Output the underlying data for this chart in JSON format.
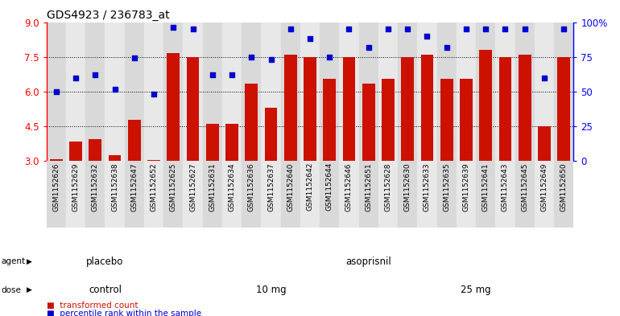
{
  "title": "GDS4923 / 236783_at",
  "samples": [
    "GSM1152626",
    "GSM1152629",
    "GSM1152632",
    "GSM1152638",
    "GSM1152647",
    "GSM1152652",
    "GSM1152625",
    "GSM1152627",
    "GSM1152631",
    "GSM1152634",
    "GSM1152636",
    "GSM1152637",
    "GSM1152640",
    "GSM1152642",
    "GSM1152644",
    "GSM1152646",
    "GSM1152651",
    "GSM1152628",
    "GSM1152630",
    "GSM1152633",
    "GSM1152635",
    "GSM1152639",
    "GSM1152641",
    "GSM1152643",
    "GSM1152645",
    "GSM1152649",
    "GSM1152650"
  ],
  "bar_values": [
    3.1,
    3.85,
    3.95,
    3.25,
    4.8,
    3.05,
    7.65,
    7.5,
    4.6,
    4.6,
    6.35,
    5.3,
    7.6,
    7.5,
    6.55,
    7.5,
    6.35,
    6.55,
    7.5,
    7.6,
    6.55,
    6.55,
    7.8,
    7.5,
    7.6,
    4.5,
    7.5
  ],
  "blue_values_pct": [
    50,
    60,
    62,
    52,
    74,
    48,
    96,
    95,
    62,
    62,
    75,
    73,
    95,
    88,
    75,
    95,
    82,
    95,
    95,
    90,
    82,
    95,
    95,
    95,
    95,
    60,
    95
  ],
  "ylim_left": [
    3,
    9
  ],
  "ylim_right": [
    0,
    100
  ],
  "yticks_left": [
    3,
    4.5,
    6,
    7.5,
    9
  ],
  "yticks_right": [
    0,
    25,
    50,
    75,
    100
  ],
  "bar_color": "#cc1100",
  "dot_color": "#0000cc",
  "agent_groups": [
    {
      "label": "placebo",
      "start": 0,
      "end": 6,
      "color": "#aaddaa"
    },
    {
      "label": "asoprisnil",
      "start": 6,
      "end": 27,
      "color": "#77cc77"
    }
  ],
  "dose_groups": [
    {
      "label": "control",
      "start": 0,
      "end": 6,
      "color": "#ddaadd"
    },
    {
      "label": "10 mg",
      "start": 6,
      "end": 17,
      "color": "#cc88cc"
    },
    {
      "label": "25 mg",
      "start": 17,
      "end": 27,
      "color": "#cc88cc"
    }
  ],
  "legend_items": [
    {
      "label": "transformed count",
      "color": "#cc1100"
    },
    {
      "label": "percentile rank within the sample",
      "color": "#0000cc"
    }
  ]
}
